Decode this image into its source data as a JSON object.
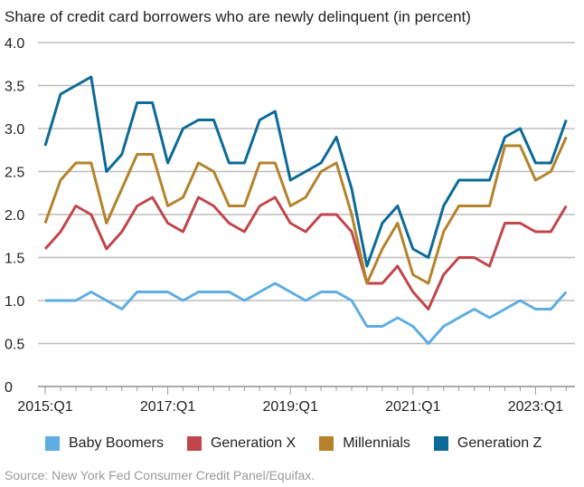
{
  "chart_data": {
    "type": "line",
    "title": "Share of credit card borrowers who are newly delinquent (in percent)",
    "xlabel": "",
    "ylabel": "",
    "ylim": [
      0,
      4.0
    ],
    "yticks": [
      "0",
      "0.5",
      "1.0",
      "1.5",
      "2.0",
      "2.5",
      "3.0",
      "3.5",
      "4.0"
    ],
    "ytick_values": [
      0,
      0.5,
      1.0,
      1.5,
      2.0,
      2.5,
      3.0,
      3.5,
      4.0
    ],
    "x_start": "2015:Q1",
    "x_end": "2023:Q3",
    "xtick_labels": [
      {
        "label": "2015:Q1",
        "index": 0
      },
      {
        "label": "2017:Q1",
        "index": 8
      },
      {
        "label": "2019:Q1",
        "index": 16
      },
      {
        "label": "2021:Q1",
        "index": 24
      },
      {
        "label": "2023:Q1",
        "index": 32
      }
    ],
    "grid": true,
    "legend_position": "bottom",
    "series": [
      {
        "name": "Baby Boomers",
        "color": "#5dade2",
        "values": [
          1.0,
          1.0,
          1.0,
          1.1,
          1.0,
          0.9,
          1.1,
          1.1,
          1.1,
          1.0,
          1.1,
          1.1,
          1.1,
          1.0,
          1.1,
          1.2,
          1.1,
          1.0,
          1.1,
          1.1,
          1.0,
          0.7,
          0.7,
          0.8,
          0.7,
          0.5,
          0.7,
          0.8,
          0.9,
          0.8,
          0.9,
          1.0,
          0.9,
          0.9,
          1.1
        ]
      },
      {
        "name": "Generation X",
        "color": "#c0464a",
        "values": [
          1.6,
          1.8,
          2.1,
          2.0,
          1.6,
          1.8,
          2.1,
          2.2,
          1.9,
          1.8,
          2.2,
          2.1,
          1.9,
          1.8,
          2.1,
          2.2,
          1.9,
          1.8,
          2.0,
          2.0,
          1.8,
          1.2,
          1.2,
          1.4,
          1.1,
          0.9,
          1.3,
          1.5,
          1.5,
          1.4,
          1.9,
          1.9,
          1.8,
          1.8,
          2.1
        ]
      },
      {
        "name": "Millennials",
        "color": "#b5822b",
        "values": [
          1.9,
          2.4,
          2.6,
          2.6,
          1.9,
          2.3,
          2.7,
          2.7,
          2.1,
          2.2,
          2.6,
          2.5,
          2.1,
          2.1,
          2.6,
          2.6,
          2.1,
          2.2,
          2.5,
          2.6,
          2.0,
          1.2,
          1.6,
          1.9,
          1.3,
          1.2,
          1.8,
          2.1,
          2.1,
          2.1,
          2.8,
          2.8,
          2.4,
          2.5,
          2.9
        ]
      },
      {
        "name": "Generation Z",
        "color": "#0b6a97",
        "values": [
          2.8,
          3.4,
          3.5,
          3.6,
          2.5,
          2.7,
          3.3,
          3.3,
          2.6,
          3.0,
          3.1,
          3.1,
          2.6,
          2.6,
          3.1,
          3.2,
          2.4,
          2.5,
          2.6,
          2.9,
          2.3,
          1.4,
          1.9,
          2.1,
          1.6,
          1.5,
          2.1,
          2.4,
          2.4,
          2.4,
          2.9,
          3.0,
          2.6,
          2.6,
          3.1
        ]
      }
    ],
    "source": "Source: New York Fed Consumer Credit Panel/Equifax."
  }
}
